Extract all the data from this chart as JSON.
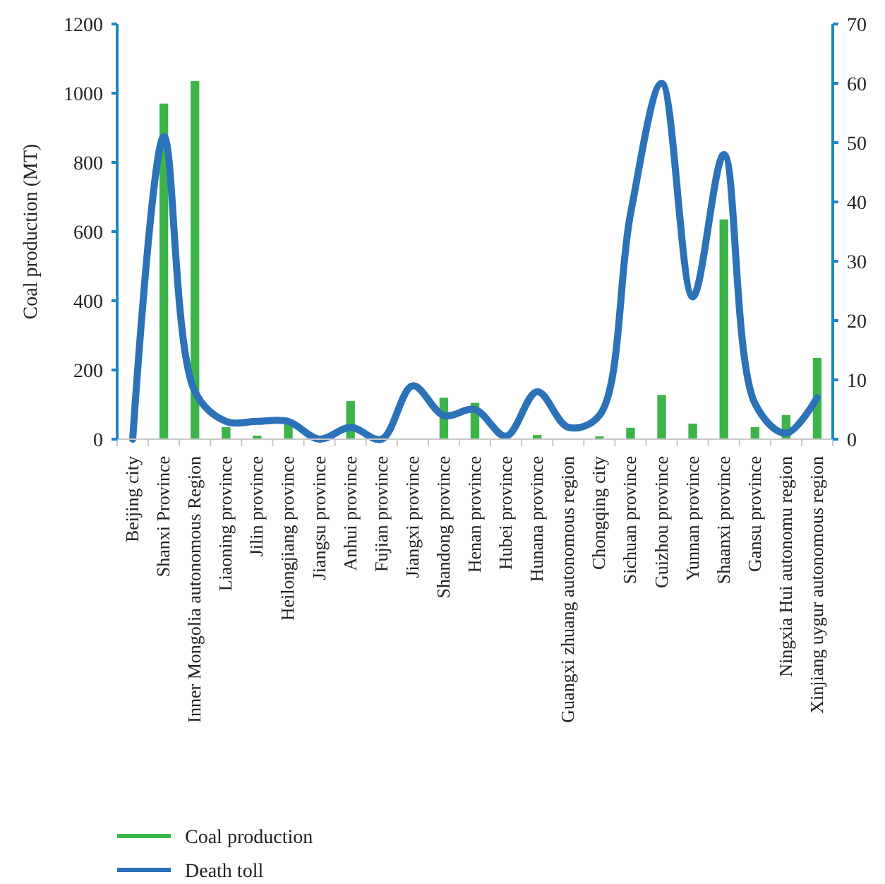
{
  "chart_data": {
    "type": "bar",
    "ylabel": "Coal production (MT)",
    "categories": [
      "Beijing city",
      "Shanxi Province",
      "Inner Mongolia autonomous Region",
      "Liaoning province",
      "Jilin province",
      "Heilongjiang province",
      "Jiangsu province",
      "Anhui province",
      "Fujian province",
      "Jiangxi province",
      "Shandong province",
      "Henan province",
      "Hubei province",
      "Hunana province",
      "Guangxi zhuang autonomous region",
      "Chongqing city",
      "Sichuan province",
      "Guizhou province",
      "Yunnan province",
      "Shaanxi province",
      "Gansu province",
      "Ningxia Hui autonomu region",
      "Xinjiang uygur autonomous region"
    ],
    "series": [
      {
        "name": "Coal production",
        "color": "#3cb44a",
        "values": [
          0,
          970,
          1035,
          35,
          10,
          50,
          0,
          110,
          0,
          0,
          120,
          105,
          0,
          12,
          0,
          8,
          33,
          128,
          45,
          635,
          35,
          70,
          235
        ]
      },
      {
        "name": "Death toll",
        "type": "line",
        "axis": "y2",
        "color": "#2b72b8",
        "values": [
          0,
          51,
          8,
          3,
          3,
          3,
          0,
          2,
          0,
          9,
          4,
          5,
          0.5,
          8,
          2,
          4,
          38,
          60,
          24,
          48,
          6,
          1,
          7
        ]
      }
    ],
    "ylim": [
      0,
      1200
    ],
    "yticks": [
      0,
      200,
      400,
      600,
      800,
      1000,
      1200
    ],
    "y2lim": [
      0,
      70
    ],
    "y2ticks": [
      0,
      10,
      20,
      30,
      40,
      50,
      60,
      70
    ],
    "grid": false,
    "legend": "bottom left",
    "marker": "none",
    "line_style": "solid"
  }
}
